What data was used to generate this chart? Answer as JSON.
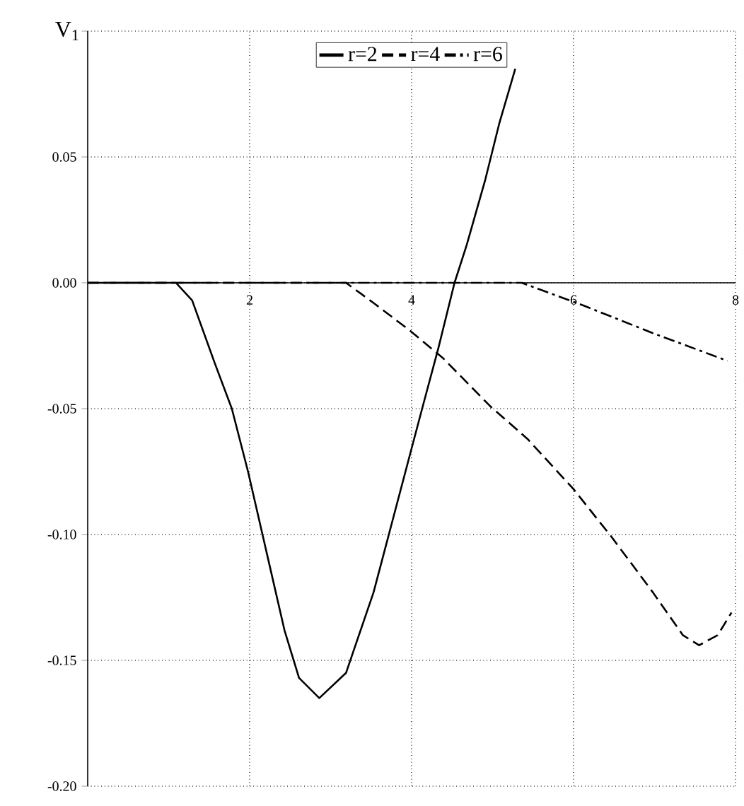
{
  "chart_data": {
    "type": "line",
    "ylabel": "V$_{1}$",
    "xlim": [
      0,
      8
    ],
    "ylim": [
      -0.2,
      0.1
    ],
    "xticks": [
      2,
      4,
      6,
      8
    ],
    "yticks": [
      {
        "value": -0.2,
        "label": "-0.20"
      },
      {
        "value": -0.15,
        "label": "-0.15"
      },
      {
        "value": -0.1,
        "label": "-0.10"
      },
      {
        "value": -0.05,
        "label": "-0.05"
      },
      {
        "value": 0,
        "label": "0.00"
      },
      {
        "value": 0.05,
        "label": "0.05"
      },
      {
        "value": 0.1,
        "label": null
      }
    ],
    "grid": true,
    "legend": "top",
    "series": [
      {
        "name": "r=2",
        "color": "#000000",
        "line_style": "solid",
        "x": [
          0,
          1.09,
          1.29,
          1.57,
          1.78,
          1.98,
          2.23,
          2.43,
          2.61,
          2.86,
          3.19,
          3.53,
          3.76,
          3.99,
          4.13,
          4.33,
          4.53,
          4.68,
          4.91,
          5.08,
          5.28
        ],
        "values": [
          0,
          0,
          -0.007,
          -0.032,
          -0.05,
          -0.075,
          -0.11,
          -0.138,
          -0.157,
          -0.165,
          -0.155,
          -0.123,
          -0.095,
          -0.067,
          -0.05,
          -0.026,
          0,
          0.015,
          0.041,
          0.063,
          0.085
        ]
      },
      {
        "name": "r=4",
        "color": "#000000",
        "line_style": "dashed",
        "x": [
          0,
          3.19,
          3.53,
          3.98,
          4.39,
          4.97,
          5.43,
          6.0,
          6.47,
          6.98,
          7.35,
          7.55,
          7.78,
          7.95
        ],
        "values": [
          0,
          0,
          -0.008,
          -0.019,
          -0.03,
          -0.049,
          -0.062,
          -0.082,
          -0.101,
          -0.123,
          -0.14,
          -0.144,
          -0.14,
          -0.131
        ]
      },
      {
        "name": "r=6",
        "color": "#000000",
        "line_style": "dashdotted",
        "x": [
          0,
          5.36,
          6.12,
          6.98,
          7.9
        ],
        "values": [
          0,
          0,
          -0.009,
          -0.02,
          -0.031
        ]
      }
    ]
  }
}
